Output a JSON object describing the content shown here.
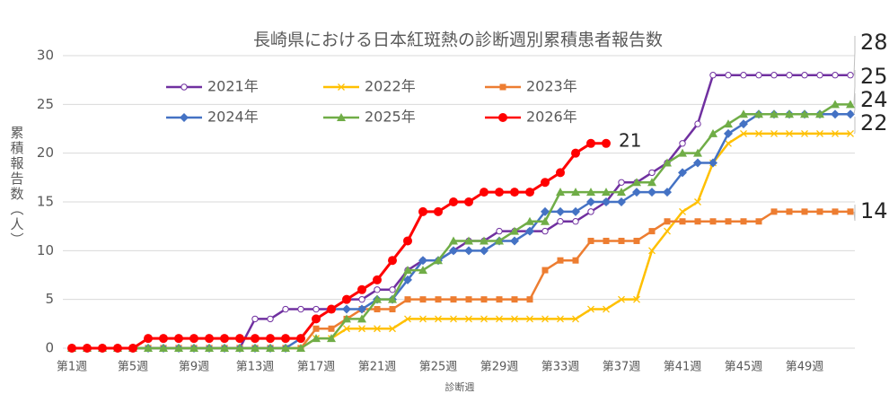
{
  "chart_data": {
    "type": "line",
    "title": "長崎県における日本紅斑熱の診断週別累積患者報告数",
    "x_label": "診断週",
    "y_label": "累積報告数（人）",
    "categories": [
      "第1週",
      null,
      null,
      null,
      "第5週",
      null,
      null,
      null,
      "第9週",
      null,
      null,
      null,
      "第13週",
      null,
      null,
      null,
      "第17週",
      null,
      null,
      null,
      "第21週",
      null,
      null,
      null,
      "第25週",
      null,
      null,
      null,
      "第29週",
      null,
      null,
      null,
      "第33週",
      null,
      null,
      null,
      "第37週",
      null,
      null,
      null,
      "第41週",
      null,
      null,
      null,
      "第45週",
      null,
      null,
      null,
      "第49週",
      null,
      null,
      null
    ],
    "ylim": [
      0,
      30
    ],
    "yticks": [
      0,
      5,
      10,
      15,
      20,
      25,
      30
    ],
    "grid": true,
    "series": [
      {
        "name": "2021年",
        "color": "#7030a0",
        "marker": "open-circle",
        "end_label": "28",
        "values": [
          0,
          0,
          0,
          0,
          0,
          0,
          0,
          0,
          0,
          0,
          0,
          0,
          3,
          3,
          4,
          4,
          4,
          4,
          5,
          5,
          6,
          6,
          8,
          9,
          9,
          10,
          11,
          11,
          12,
          12,
          12,
          12,
          13,
          13,
          14,
          15,
          17,
          17,
          18,
          19,
          21,
          23,
          28,
          28,
          28,
          28,
          28,
          28,
          28,
          28,
          28,
          28
        ]
      },
      {
        "name": "2022年",
        "color": "#ffc000",
        "marker": "x",
        "end_label": "22",
        "values": [
          0,
          0,
          0,
          0,
          0,
          0,
          0,
          0,
          0,
          0,
          0,
          0,
          0,
          0,
          0,
          0,
          1,
          1,
          2,
          2,
          2,
          2,
          3,
          3,
          3,
          3,
          3,
          3,
          3,
          3,
          3,
          3,
          3,
          3,
          4,
          4,
          5,
          5,
          10,
          12,
          14,
          15,
          19,
          21,
          22,
          22,
          22,
          22,
          22,
          22,
          22,
          22
        ]
      },
      {
        "name": "2023年",
        "color": "#ed7d31",
        "marker": "square",
        "end_label": "14",
        "values": [
          0,
          0,
          0,
          0,
          0,
          0,
          0,
          0,
          0,
          0,
          0,
          0,
          0,
          0,
          0,
          0,
          2,
          2,
          3,
          4,
          4,
          4,
          5,
          5,
          5,
          5,
          5,
          5,
          5,
          5,
          5,
          8,
          9,
          9,
          11,
          11,
          11,
          11,
          12,
          13,
          13,
          13,
          13,
          13,
          13,
          13,
          14,
          14,
          14,
          14,
          14,
          14
        ]
      },
      {
        "name": "2024年",
        "color": "#4472c4",
        "marker": "diamond",
        "end_label": "24",
        "values": [
          0,
          0,
          0,
          0,
          0,
          0,
          0,
          0,
          0,
          0,
          0,
          0,
          0,
          0,
          0,
          1,
          3,
          4,
          4,
          4,
          5,
          5,
          7,
          9,
          9,
          10,
          10,
          10,
          11,
          11,
          12,
          14,
          14,
          14,
          15,
          15,
          15,
          16,
          16,
          16,
          18,
          19,
          19,
          22,
          23,
          24,
          24,
          24,
          24,
          24,
          24,
          24
        ]
      },
      {
        "name": "2025年",
        "color": "#70ad47",
        "marker": "triangle",
        "end_label": "25",
        "values": [
          0,
          0,
          0,
          0,
          0,
          0,
          0,
          0,
          0,
          0,
          0,
          0,
          0,
          0,
          0,
          0,
          1,
          1,
          3,
          3,
          5,
          5,
          8,
          8,
          9,
          11,
          11,
          11,
          11,
          12,
          13,
          13,
          16,
          16,
          16,
          16,
          16,
          17,
          17,
          19,
          20,
          20,
          22,
          23,
          24,
          24,
          24,
          24,
          24,
          24,
          25,
          25
        ]
      },
      {
        "name": "2026年",
        "color": "#ff0000",
        "marker": "filled-circle",
        "end_label": "21",
        "values": [
          0,
          0,
          0,
          0,
          0,
          1,
          1,
          1,
          1,
          1,
          1,
          1,
          1,
          1,
          1,
          1,
          3,
          4,
          5,
          6,
          7,
          9,
          11,
          14,
          14,
          15,
          15,
          16,
          16,
          16,
          16,
          17,
          18,
          20,
          21,
          21,
          null,
          null,
          null,
          null,
          null,
          null,
          null,
          null,
          null,
          null,
          null,
          null,
          null,
          null,
          null,
          null
        ]
      }
    ]
  }
}
